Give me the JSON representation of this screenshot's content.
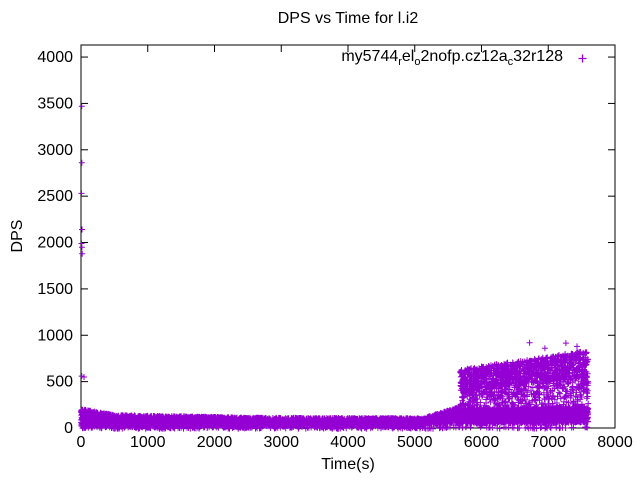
{
  "page": {
    "background": "#ffffff",
    "axis_color": "#000000"
  },
  "chart_data": {
    "type": "scatter",
    "title": "DPS vs Time for l.i2",
    "xlabel": "Time(s)",
    "ylabel": "DPS",
    "xlim": [
      0,
      8000
    ],
    "ylim": [
      0,
      4130
    ],
    "xticks": [
      0,
      1000,
      2000,
      3000,
      4000,
      5000,
      6000,
      7000,
      8000
    ],
    "yticks": [
      0,
      500,
      1000,
      1500,
      2000,
      2500,
      3000,
      3500,
      4000
    ],
    "grid": false,
    "legend_position": "top-right-inside",
    "series": [
      {
        "name": "my5744_rel_o2nofp.cz12a_c32r128",
        "label_segments": [
          {
            "t": "my5744",
            "sub": false
          },
          {
            "t": "r",
            "sub": true
          },
          {
            "t": "el",
            "sub": false
          },
          {
            "t": "o",
            "sub": true
          },
          {
            "t": "2nofp.cz12a",
            "sub": false
          },
          {
            "t": "c",
            "sub": true
          },
          {
            "t": "32r128",
            "sub": false
          }
        ],
        "marker": "plus",
        "color": "#9400d3",
        "bands": [
          {
            "x0": 0,
            "x1": 500,
            "ylo0": 30,
            "ylo1": 28,
            "yhi0": 205,
            "yhi1": 140,
            "n": 520
          },
          {
            "x0": 500,
            "x1": 2500,
            "ylo0": 28,
            "ylo1": 28,
            "yhi0": 140,
            "yhi1": 112,
            "n": 1650
          },
          {
            "x0": 2500,
            "x1": 5150,
            "ylo0": 28,
            "ylo1": 32,
            "yhi0": 112,
            "yhi1": 105,
            "n": 1750
          },
          {
            "x0": 5150,
            "x1": 5680,
            "ylo0": 35,
            "ylo1": 50,
            "yhi0": 110,
            "yhi1": 230,
            "n": 430
          },
          {
            "x0": 5680,
            "x1": 7600,
            "ylo0": 45,
            "ylo1": 55,
            "yhi0": 215,
            "yhi1": 232,
            "n": 1850
          },
          {
            "x0": 5680,
            "x1": 7600,
            "ylo0": 235,
            "ylo1": 255,
            "yhi0": 430,
            "yhi1": 565,
            "n": 430
          },
          {
            "x0": 5680,
            "x1": 7600,
            "ylo0": 400,
            "ylo1": 545,
            "yhi0": 630,
            "yhi1": 835,
            "n": 980
          },
          {
            "x0": 0,
            "x1": 5150,
            "ylo0": 3,
            "ylo1": 3,
            "yhi0": 30,
            "yhi1": 30,
            "n": 330
          },
          {
            "x0": 0,
            "x1": 7600,
            "ylo0": -8,
            "ylo1": -8,
            "yhi0": 12,
            "yhi1": 12,
            "n": 230
          }
        ],
        "outliers": [
          [
            10,
            3470
          ],
          [
            12,
            2860
          ],
          [
            8,
            2530
          ],
          [
            15,
            2140
          ],
          [
            8,
            1990
          ],
          [
            14,
            1950
          ],
          [
            18,
            1880
          ],
          [
            10,
            560
          ],
          [
            45,
            550
          ],
          [
            6720,
            920
          ],
          [
            7265,
            915
          ],
          [
            6950,
            860
          ],
          [
            7430,
            880
          ]
        ]
      }
    ]
  }
}
